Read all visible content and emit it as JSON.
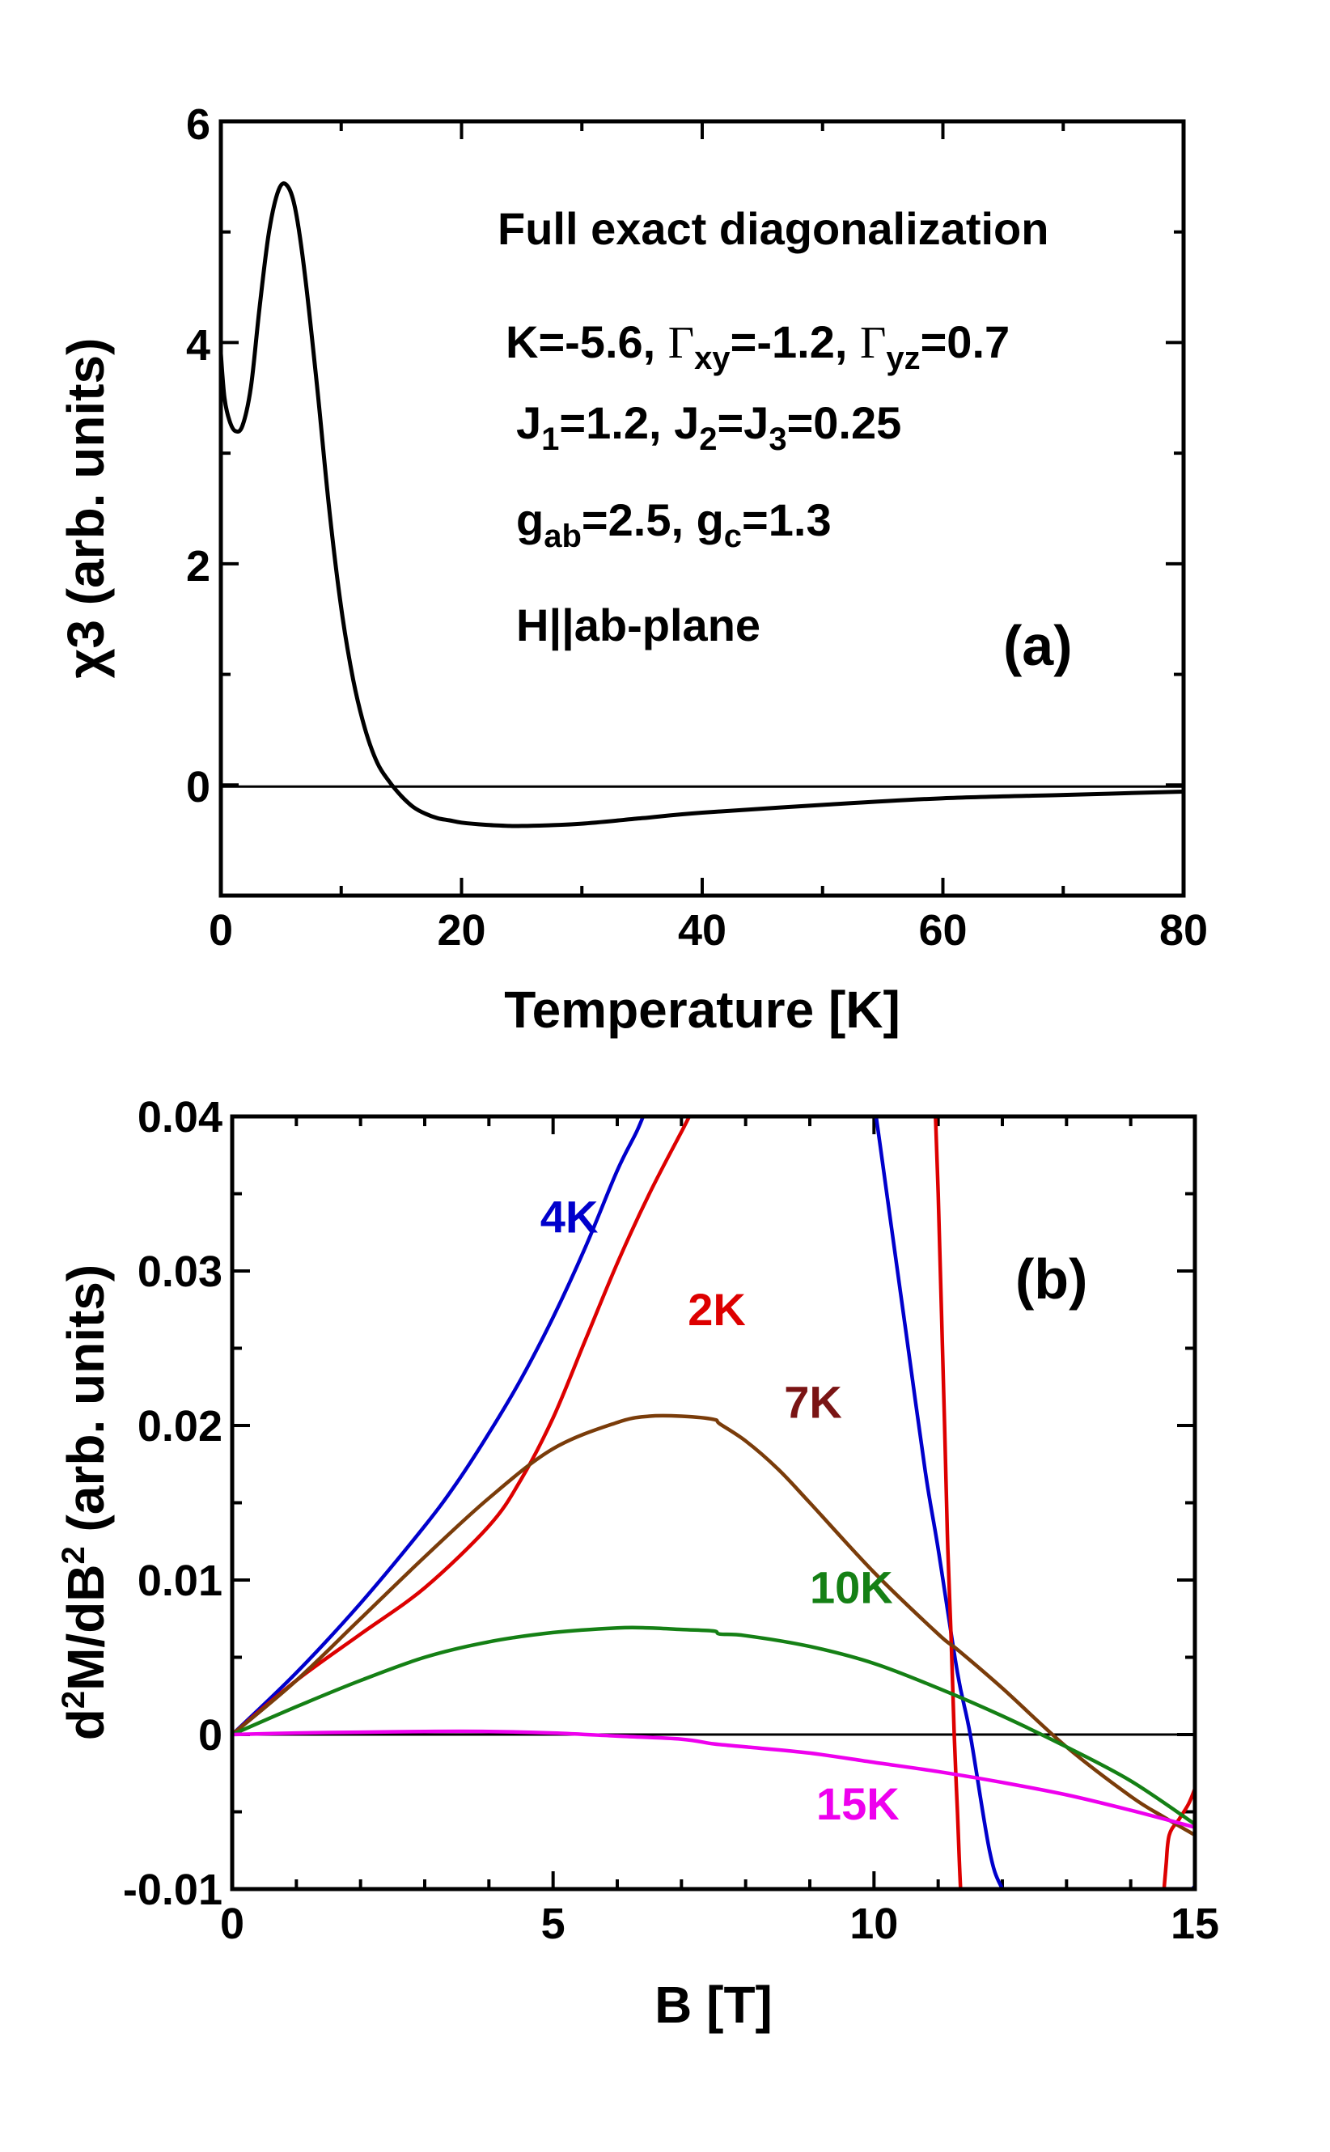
{
  "chart_data": [
    {
      "type": "line",
      "panel": "(a)",
      "xlabel": "Temperature [K]",
      "ylabel": "χ3 (arb. units)",
      "xlim": [
        0,
        80
      ],
      "ylim": [
        -1,
        6
      ],
      "xticks": [
        0,
        20,
        40,
        60,
        80
      ],
      "yticks": [
        0,
        2,
        4,
        6
      ],
      "zero_line": true,
      "annotations": {
        "line1": "Full exact diagonalization",
        "line2": {
          "a": "K=-5.6, ",
          "g1": "Γ",
          "s1": "xy",
          "b": "=-1.2, ",
          "g2": "Γ",
          "s2": "yz",
          "c": "=0.7"
        },
        "line3": {
          "a": "J",
          "s1": "1",
          "b": "=1.2, J",
          "s2": "2",
          "c": "=J",
          "s3": "3",
          "d": "=0.25"
        },
        "line4": {
          "a": "g",
          "s1": "ab",
          "b": "=2.5, g",
          "s2": "c",
          "c": "=1.3"
        },
        "line5": "H||ab-plane"
      },
      "series": [
        {
          "name": "χ3",
          "color": "#000000",
          "x": [
            0,
            0.3,
            0.7,
            1.2,
            1.8,
            2.5,
            3.2,
            4.0,
            4.8,
            5.5,
            6.2,
            7.0,
            8.0,
            9.0,
            10.0,
            11.0,
            12.0,
            13.0,
            14.0,
            15.0,
            16.0,
            17.0,
            18.0,
            19.0,
            20.0,
            22.0,
            24.0,
            25.0,
            27.0,
            30.0,
            35.0,
            40.0,
            50.0,
            60.0,
            70.0,
            80.0
          ],
          "y": [
            3.9,
            3.5,
            3.3,
            3.2,
            3.25,
            3.6,
            4.3,
            5.0,
            5.38,
            5.42,
            5.2,
            4.6,
            3.6,
            2.5,
            1.6,
            0.95,
            0.5,
            0.2,
            0.03,
            -0.1,
            -0.2,
            -0.26,
            -0.3,
            -0.32,
            -0.34,
            -0.36,
            -0.37,
            -0.37,
            -0.365,
            -0.35,
            -0.3,
            -0.25,
            -0.18,
            -0.12,
            -0.09,
            -0.06
          ]
        }
      ]
    },
    {
      "type": "line",
      "panel": "(b)",
      "xlabel": "B [T]",
      "ylabel": {
        "a": "d",
        "s1": "2",
        "b": "M/dB",
        "s2": "2",
        "c": " (arb. units)"
      },
      "xlim": [
        0,
        15
      ],
      "ylim": [
        -0.01,
        0.04
      ],
      "xticks": [
        0,
        5,
        10,
        15
      ],
      "xtick_labels": [
        "0",
        "5",
        "10",
        "15"
      ],
      "yticks": [
        -0.01,
        0,
        0.01,
        0.02,
        0.03,
        0.04
      ],
      "ytick_labels": [
        "-0.01",
        "0",
        "0.01",
        "0.02",
        "0.03",
        "0.04"
      ],
      "zero_line": true,
      "series": [
        {
          "name": "4K",
          "color": "#0000cc",
          "label_at": [
            4.8,
            0.0325
          ],
          "segments": [
            {
              "x": [
                0,
                1,
                2,
                3,
                3.5,
                4,
                4.5,
                5,
                5.5,
                6,
                6.3,
                6.45,
                6.5
              ],
              "y": [
                0,
                0.004,
                0.0085,
                0.0135,
                0.0163,
                0.0195,
                0.023,
                0.027,
                0.0315,
                0.0365,
                0.039,
                0.0405,
                0.041
              ]
            },
            {
              "x": [
                10.0,
                10.1,
                10.3,
                10.5,
                10.8,
                11.0,
                11.3,
                11.5,
                11.8,
                12.0,
                12.3
              ],
              "y": [
                0.041,
                0.038,
                0.032,
                0.026,
                0.017,
                0.012,
                0.004,
                0.0,
                -0.0075,
                -0.01,
                -0.012
              ]
            },
            {
              "x": [
                14.9,
                15.0
              ],
              "y": [
                -0.0103,
                -0.0098
              ]
            }
          ]
        },
        {
          "name": "2K",
          "color": "#dd0000",
          "label_at": [
            7.1,
            0.0265
          ],
          "segments": [
            {
              "x": [
                0,
                1,
                2,
                3,
                4,
                4.5,
                5,
                5.5,
                6,
                6.5,
                7,
                7.2,
                7.4
              ],
              "y": [
                0,
                0.0035,
                0.0065,
                0.0095,
                0.0135,
                0.0165,
                0.0205,
                0.0255,
                0.0305,
                0.035,
                0.039,
                0.0405,
                0.041
              ]
            },
            {
              "x": [
                10.95,
                11.0,
                11.1,
                11.15,
                11.2,
                11.25,
                11.3,
                11.35,
                11.4
              ],
              "y": [
                0.041,
                0.035,
                0.02,
                0.012,
                0.0065,
                0.0,
                -0.005,
                -0.01,
                -0.012
              ]
            },
            {
              "x": [
                14.5,
                14.55,
                14.6,
                14.75,
                14.9,
                15.0
              ],
              "y": [
                -0.011,
                -0.0085,
                -0.0065,
                -0.0055,
                -0.0045,
                -0.0035
              ]
            }
          ]
        },
        {
          "name": "7K",
          "color": "#7a3c0a",
          "label_color": "#7a1414",
          "label_at": [
            8.6,
            0.0205
          ],
          "segments": [
            {
              "x": [
                0,
                1,
                2,
                3,
                4,
                5,
                6,
                6.5,
                7,
                7.5,
                7.6,
                8,
                8.5,
                9,
                10,
                11,
                11.3,
                12,
                13,
                14,
                14.5,
                15
              ],
              "y": [
                0,
                0.0035,
                0.0075,
                0.0115,
                0.0153,
                0.0185,
                0.0202,
                0.0206,
                0.0206,
                0.0204,
                0.0201,
                0.019,
                0.0172,
                0.015,
                0.0105,
                0.0065,
                0.0055,
                0.003,
                -0.0008,
                -0.004,
                -0.0053,
                -0.0065
              ]
            }
          ]
        },
        {
          "name": "10K",
          "color": "#158015",
          "label_at": [
            9.0,
            0.0085
          ],
          "segments": [
            {
              "x": [
                0,
                1,
                2,
                3,
                4,
                5,
                6,
                6.5,
                7,
                7.5,
                7.6,
                8,
                9,
                10,
                11,
                12,
                13,
                14,
                15
              ],
              "y": [
                0,
                0.0018,
                0.0035,
                0.005,
                0.006,
                0.0066,
                0.0069,
                0.0069,
                0.0068,
                0.0067,
                0.0065,
                0.0064,
                0.0057,
                0.0046,
                0.003,
                0.0012,
                -0.0008,
                -0.003,
                -0.0058
              ]
            }
          ]
        },
        {
          "name": "15K",
          "color": "#ee00ee",
          "label_at": [
            9.1,
            -0.0055
          ],
          "segments": [
            {
              "x": [
                0,
                1,
                2,
                3,
                4,
                5,
                6,
                7,
                7.5,
                8,
                9,
                10,
                11,
                12,
                13,
                14,
                15
              ],
              "y": [
                0,
                0.0001,
                0.00015,
                0.0002,
                0.0002,
                0.0001,
                -0.0001,
                -0.0003,
                -0.0006,
                -0.0008,
                -0.0012,
                -0.0018,
                -0.0024,
                -0.0031,
                -0.0039,
                -0.0049,
                -0.006
              ]
            }
          ]
        }
      ]
    }
  ]
}
